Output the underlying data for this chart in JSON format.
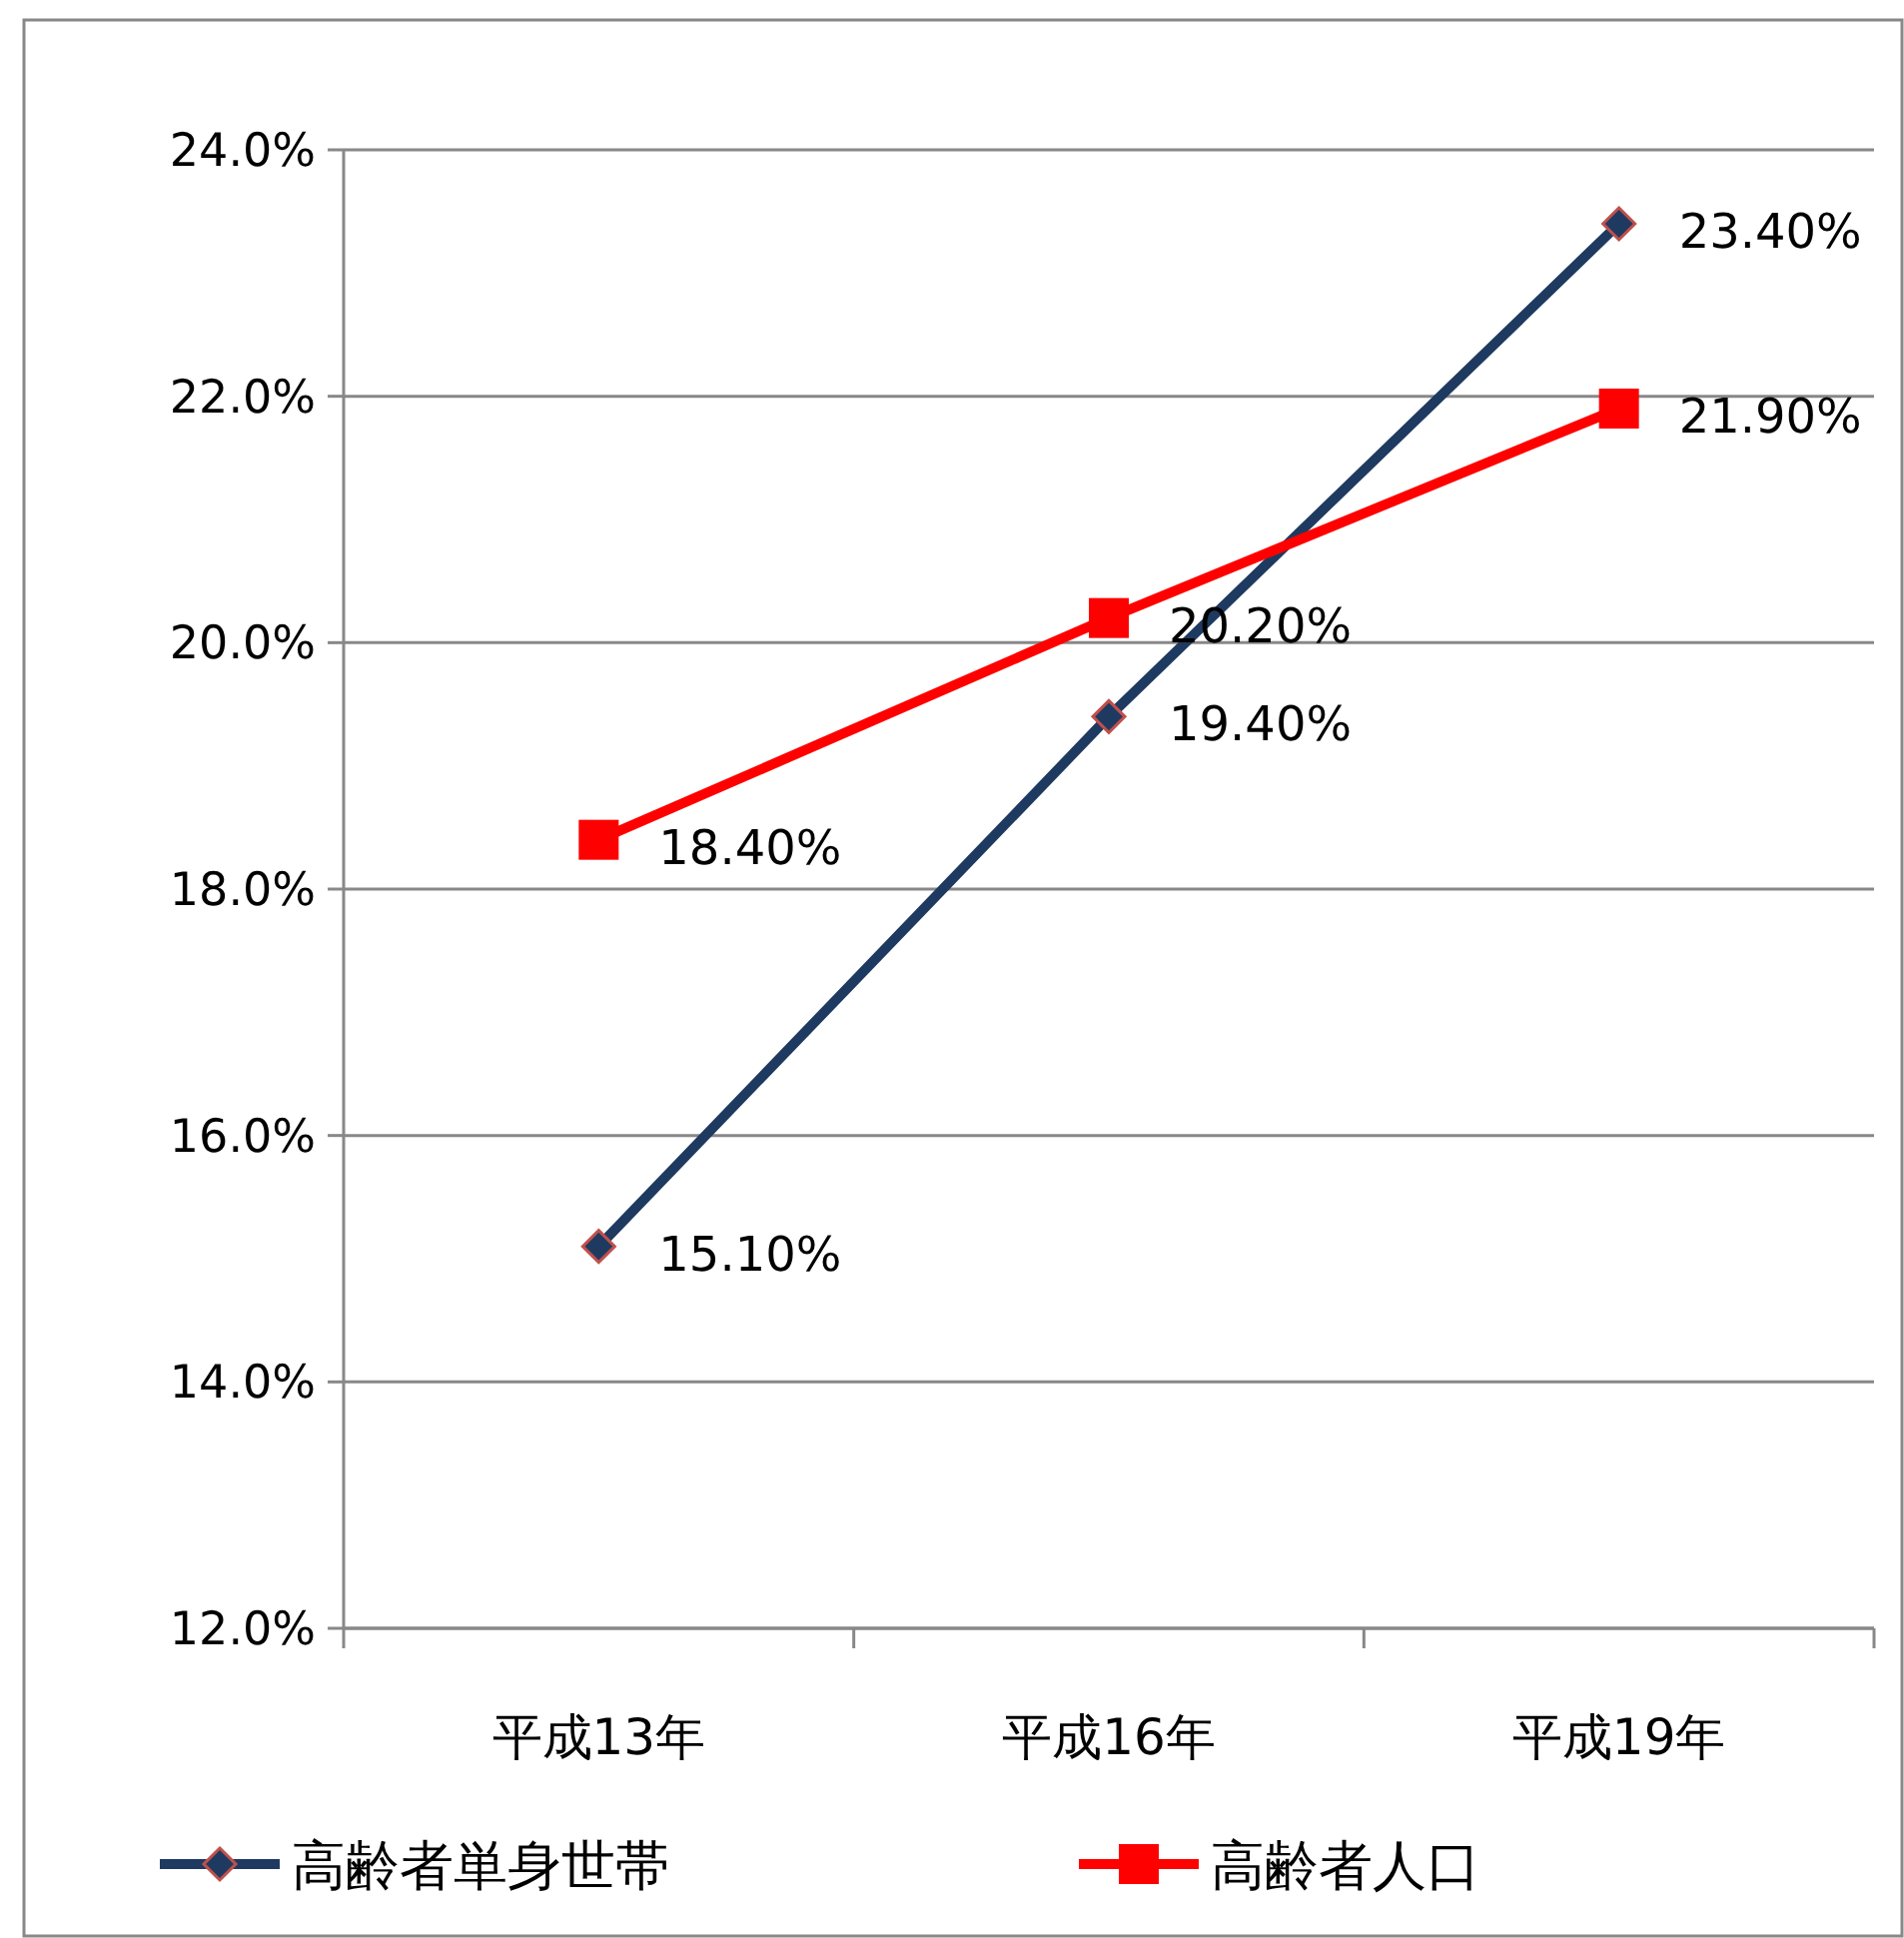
{
  "chart_data": {
    "type": "line",
    "categories": [
      "平成13年",
      "平成16年",
      "平成19年"
    ],
    "series": [
      {
        "name": "高齢者単身世帯",
        "color": "#1f3a60",
        "marker": "diamond",
        "values": [
          15.1,
          19.4,
          23.4
        ],
        "value_labels": [
          "15.10%",
          "19.40%",
          "23.40%"
        ]
      },
      {
        "name": "高齢者人口",
        "color": "#ff0000",
        "marker": "square",
        "values": [
          18.4,
          20.2,
          21.9
        ],
        "value_labels": [
          "18.40%",
          "20.20%",
          "21.90%"
        ]
      }
    ],
    "ylim": [
      12,
      24
    ],
    "yticks": [
      {
        "value": 12,
        "label": "12.0%"
      },
      {
        "value": 14,
        "label": "14.0%"
      },
      {
        "value": 16,
        "label": "16.0%"
      },
      {
        "value": 18,
        "label": "18.0%"
      },
      {
        "value": 20,
        "label": "20.0%"
      },
      {
        "value": 22,
        "label": "22.0%"
      },
      {
        "value": 24,
        "label": "24.0%"
      }
    ],
    "grid": "y",
    "legend": "bottom"
  }
}
